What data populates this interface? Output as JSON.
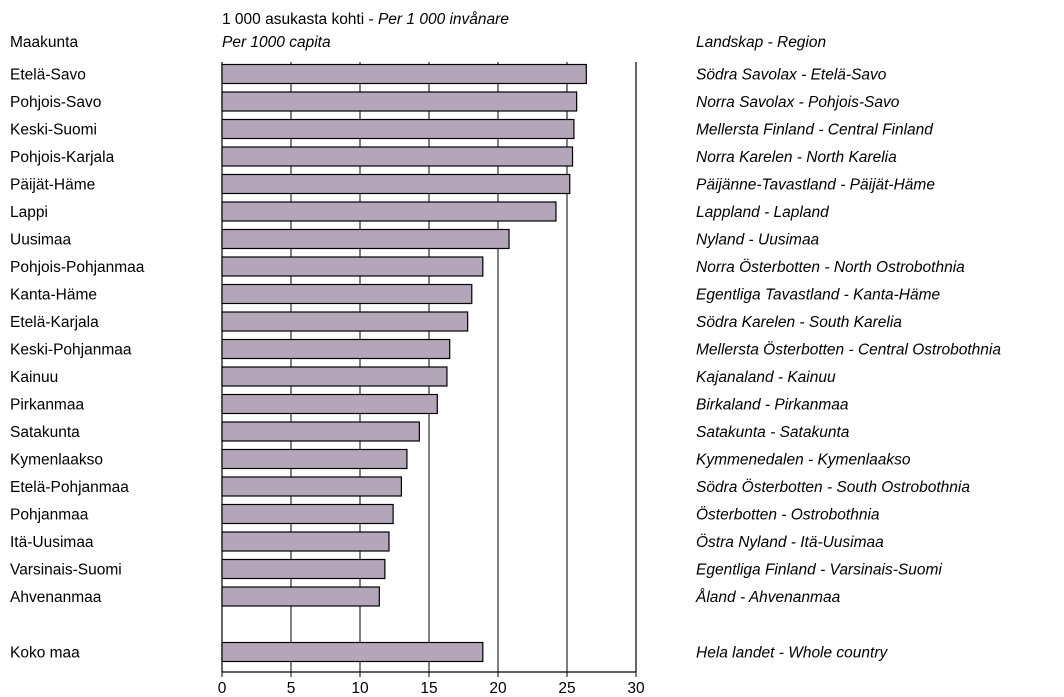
{
  "chart_data": {
    "type": "bar",
    "orientation": "horizontal",
    "header": {
      "left_title": "Maakunta",
      "unit_line1_plain": "1 000 asukasta kohti - ",
      "unit_line1_italic": "Per 1 000 invånare",
      "unit_line2_italic": "Per 1000 capita",
      "right_title": "Landskap - Region"
    },
    "categories": [
      "Etelä-Savo",
      "Pohjois-Savo",
      "Keski-Suomi",
      "Pohjois-Karjala",
      "Päijät-Häme",
      "Lappi",
      "Uusimaa",
      "Pohjois-Pohjanmaa",
      "Kanta-Häme",
      "Etelä-Karjala",
      "Keski-Pohjanmaa",
      "Kainuu",
      "Pirkanmaa",
      "Satakunta",
      "Kymenlaakso",
      "Etelä-Pohjanmaa",
      "Pohjanmaa",
      "Itä-Uusimaa",
      "Varsinais-Suomi",
      "Ahvenanmaa",
      "Koko maa"
    ],
    "right_labels": [
      "Södra Savolax - Etelä-Savo",
      "Norra Savolax - Pohjois-Savo",
      "Mellersta Finland - Central Finland",
      "Norra Karelen - North Karelia",
      "Päijänne-Tavastland - Päijät-Häme",
      "Lappland - Lapland",
      "Nyland - Uusimaa",
      "Norra Österbotten - North Ostrobothnia",
      "Egentliga Tavastland - Kanta-Häme",
      "Södra Karelen - South Karelia",
      "Mellersta Österbotten - Central Ostrobothnia",
      "Kajanaland - Kainuu",
      "Birkaland - Pirkanmaa",
      "Satakunta - Satakunta",
      "Kymmenedalen - Kymenlaakso",
      "Södra Österbotten - South Ostrobothnia",
      "Österbotten - Ostrobothnia",
      "Östra Nyland - Itä-Uusimaa",
      "Egentliga Finland - Varsinais-Suomi",
      "Åland - Ahvenanmaa",
      "Hela landet - Whole country"
    ],
    "values": [
      26.4,
      25.7,
      25.5,
      25.4,
      25.2,
      24.2,
      20.8,
      18.9,
      18.1,
      17.8,
      16.5,
      16.3,
      15.6,
      14.3,
      13.4,
      13.0,
      12.4,
      12.1,
      11.8,
      11.4,
      18.9
    ],
    "xlim": [
      0,
      30
    ],
    "xticks": [
      0,
      5,
      10,
      15,
      20,
      25,
      30
    ],
    "grid": true,
    "colors": {
      "bar_fill": "#b3a6b8",
      "bar_stroke": "#000000"
    }
  }
}
